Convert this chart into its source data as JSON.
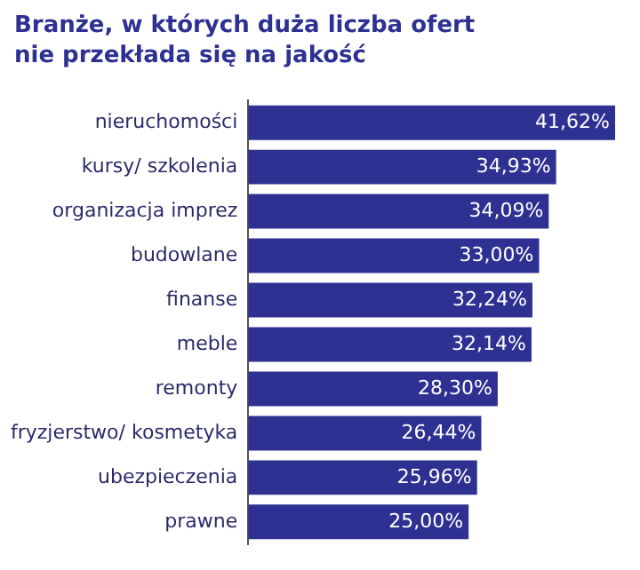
{
  "chart_data": {
    "type": "bar",
    "orientation": "horizontal",
    "title": "Branże, w których duża liczba ofert\nnie przekłada się na jakość",
    "categories": [
      "nieruchomości",
      "kursy/ szkolenia",
      "organizacja imprez",
      "budowlane",
      "finanse",
      "meble",
      "remonty",
      "fryzjerstwo/ kosmetyka",
      "ubezpieczenia",
      "prawne"
    ],
    "values": [
      41.62,
      34.93,
      34.09,
      33.0,
      32.24,
      32.14,
      28.3,
      26.44,
      25.96,
      25.0
    ],
    "value_labels": [
      "41,62%",
      "34,93%",
      "34,09%",
      "33,00%",
      "32,24%",
      "32,14%",
      "28,30%",
      "26,44%",
      "25,96%",
      "25,00%"
    ],
    "color": "#2e3192",
    "grid": false,
    "legend": false
  }
}
